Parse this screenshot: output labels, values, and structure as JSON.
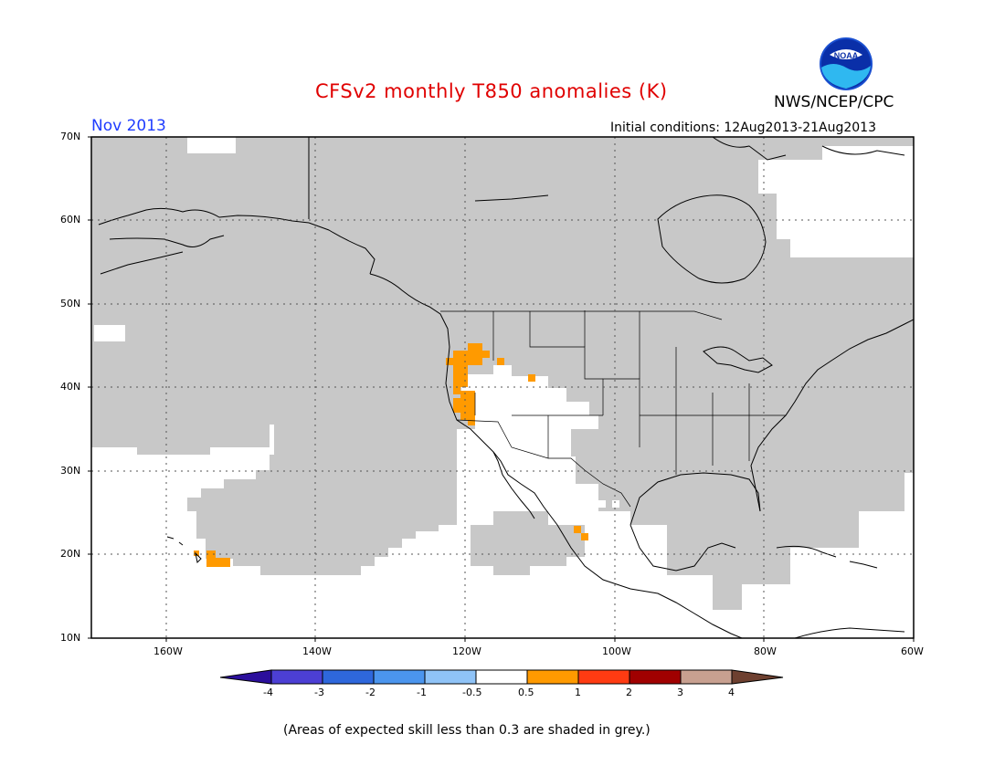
{
  "header": {
    "title": "CFSv2 monthly T850 anomalies (K)",
    "agency": "NWS/NCEP/CPC",
    "month": "Nov 2013",
    "initial_conditions": "Initial conditions: 12Aug2013-21Aug2013",
    "logo_text": "NOAA"
  },
  "colors": {
    "title": "#e00000",
    "month": "#1f3cff",
    "skill_mask": "#c8c8c8",
    "positive_anomaly": "#ff9a00"
  },
  "map": {
    "lat_labels": [
      "70N",
      "60N",
      "50N",
      "40N",
      "30N",
      "20N",
      "10N"
    ],
    "lon_labels": [
      "160W",
      "140W",
      "120W",
      "100W",
      "80W",
      "60W"
    ]
  },
  "colorbar": {
    "labels": [
      "-4",
      "-3",
      "-2",
      "-1",
      "-0.5",
      "0.5",
      "1",
      "2",
      "3",
      "4"
    ],
    "colors": [
      "#2b0f9c",
      "#4c3fd4",
      "#2e67dc",
      "#4b95ee",
      "#8fc3f7",
      "#ffffff",
      "#ff9a00",
      "#ff3b12",
      "#a00000",
      "#c8a090",
      "#6e4030"
    ]
  },
  "footnote": "(Areas of expected skill less than 0.3 are shaded in grey.)"
}
